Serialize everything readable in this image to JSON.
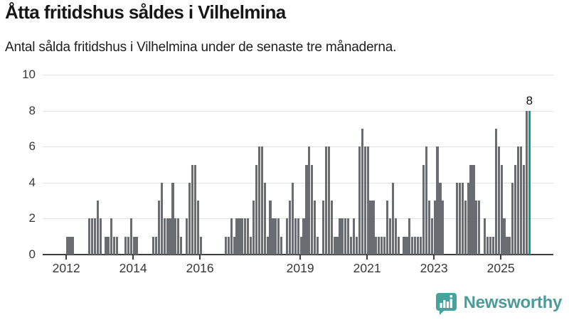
{
  "title": "Åtta fritidshus såldes i Vilhelmina",
  "subtitle": "Antal sålda fritidshus i Vilhelmina under de senaste tre månaderna.",
  "branding": {
    "wordmark": "Newsworthy",
    "logo": "newsworthy-speech-bubble-bar-chart-icon"
  },
  "colors": {
    "bar": "#696c71",
    "highlight": "#00a09b",
    "grid": "#e2e2e2",
    "axis": "#3e3e3e",
    "axis_text": "#383838",
    "brand_teal": "#47a29d",
    "brand_text": "#4b9c99"
  },
  "chart_data": {
    "type": "bar",
    "title": "Åtta fritidshus såldes i Vilhelmina",
    "subtitle": "Antal sålda fritidshus i Vilhelmina under de senaste tre månaderna.",
    "xlabel": "",
    "ylabel": "",
    "grid": true,
    "legend": false,
    "start_month": "2012-01",
    "end_month": "2025-11",
    "highlight_last_bar": true,
    "highlight_value_label": "8",
    "y_axis": {
      "ticks": [
        0,
        2,
        4,
        6,
        8,
        10
      ],
      "min": 0,
      "max": 10
    },
    "x_axis": {
      "tick_years": [
        2012,
        2014,
        2016,
        2019,
        2021,
        2023,
        2025
      ]
    },
    "values_by_year": {
      "2012": [
        1,
        1,
        1,
        0,
        0,
        0,
        0,
        0,
        2,
        2,
        2,
        3
      ],
      "2013": [
        2,
        0,
        1,
        1,
        2,
        1,
        1,
        0,
        0,
        1,
        1,
        2
      ],
      "2014": [
        1,
        1,
        0,
        0,
        0,
        0,
        0,
        1,
        1,
        3,
        4,
        2
      ],
      "2015": [
        2,
        2,
        4,
        2,
        2,
        1,
        0,
        2,
        4,
        5,
        5,
        3
      ],
      "2016": [
        1,
        0,
        0,
        0,
        0,
        0,
        0,
        0,
        0,
        1,
        1,
        2
      ],
      "2017": [
        1,
        2,
        2,
        2,
        2,
        2,
        1,
        3,
        5,
        6,
        6,
        4
      ],
      "2018": [
        1,
        3,
        2,
        2,
        2,
        1,
        0,
        2,
        3,
        4,
        2,
        2
      ],
      "2019": [
        1,
        2,
        5,
        6,
        5,
        3,
        1,
        0,
        3,
        6,
        6,
        3
      ],
      "2020": [
        1,
        1,
        2,
        2,
        2,
        2,
        1,
        2,
        1,
        6,
        7,
        6
      ],
      "2021": [
        6,
        3,
        3,
        1,
        1,
        1,
        1,
        3,
        2,
        4,
        2,
        1
      ],
      "2022": [
        0,
        1,
        1,
        2,
        1,
        1,
        1,
        1,
        5,
        6,
        3,
        2
      ],
      "2023": [
        3,
        6,
        4,
        3,
        0,
        0,
        0,
        0,
        4,
        4,
        4,
        3
      ],
      "2024": [
        4,
        5,
        5,
        3,
        3,
        0,
        2,
        1,
        1,
        1,
        7,
        6
      ],
      "2025": [
        5,
        2,
        1,
        1,
        4,
        5,
        6,
        6,
        5,
        8,
        8
      ]
    }
  }
}
